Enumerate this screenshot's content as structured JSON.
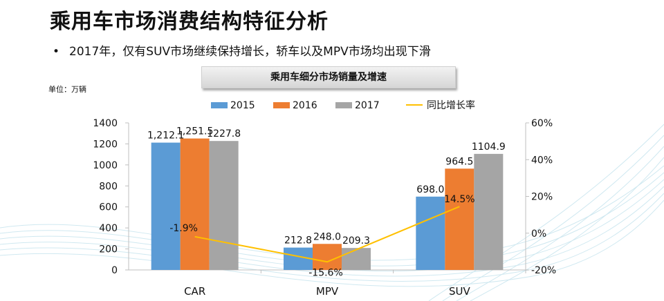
{
  "page": {
    "title": "乘用车市场消费结构特征分析",
    "bullet": "2017年，仅有SUV市场继续保持增长，轿车以及MPV市场均出现下滑",
    "bullet_marker": "•",
    "unit_label": "单位：万辆"
  },
  "chart_data": {
    "type": "bar",
    "title": "乘用车细分市场销量及增速",
    "categories": [
      "CAR",
      "MPV",
      "SUV"
    ],
    "series": [
      {
        "name": "2015",
        "values": [
          1212.1,
          212.8,
          698.0
        ],
        "labels": [
          "1,212.1",
          "212.8",
          "698.0"
        ],
        "color": "#5b9bd5"
      },
      {
        "name": "2016",
        "values": [
          1251.5,
          248.0,
          964.5
        ],
        "labels": [
          "1,251.5",
          "248.0",
          "964.5"
        ],
        "color": "#ed7d31"
      },
      {
        "name": "2017",
        "values": [
          1227.8,
          209.3,
          1104.9
        ],
        "labels": [
          "1227.8",
          "209.3",
          "1104.9"
        ],
        "color": "#a5a5a5"
      }
    ],
    "line_series": {
      "name": "同比增长率",
      "values": [
        -1.9,
        -15.6,
        14.5
      ],
      "labels": [
        "-1.9%",
        "-15.6%",
        "14.5%"
      ],
      "color": "#ffc000"
    },
    "y_left": {
      "min": 0,
      "max": 1400,
      "ticks": [
        "0",
        "200",
        "400",
        "600",
        "800",
        "1000",
        "1200",
        "1400"
      ]
    },
    "y_right": {
      "min": -20,
      "max": 60,
      "ticks": [
        "-20%",
        "0%",
        "20%",
        "40%",
        "60%"
      ]
    },
    "legend_position": "top",
    "grid": false
  }
}
